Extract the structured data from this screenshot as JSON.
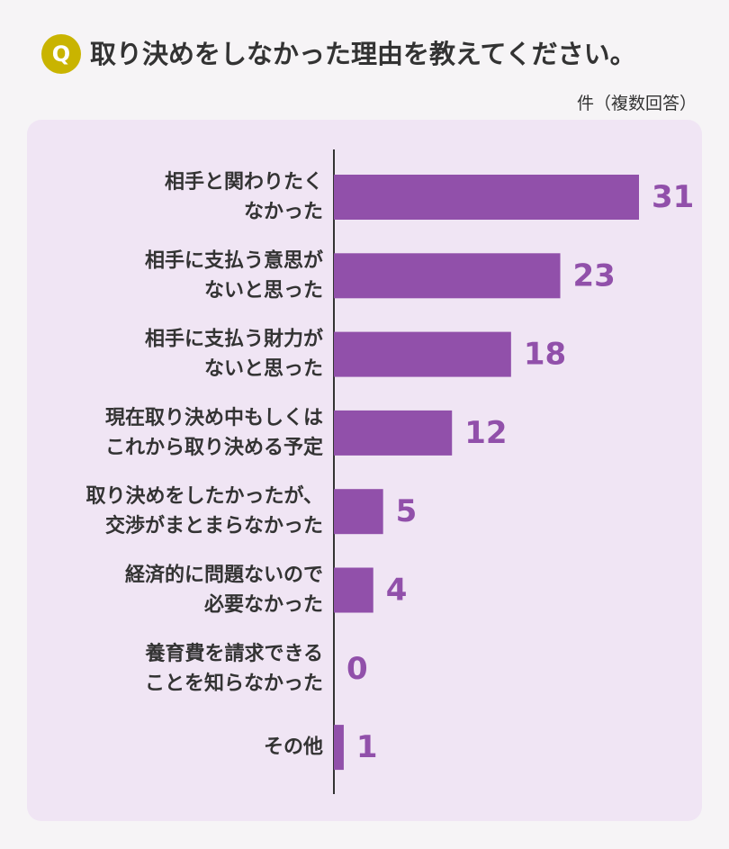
{
  "header": {
    "badge": "Q",
    "question": "取り決めをしなかった理由を教えてください。",
    "unit_note": "件（複数回答）"
  },
  "colors": {
    "bar": "#9150aa",
    "badge": "#c9b400",
    "panel": "#f0e5f4"
  },
  "chart_data": {
    "type": "bar",
    "orientation": "horizontal",
    "title": "取り決めをしなかった理由を教えてください。",
    "xlabel": "",
    "ylabel": "",
    "xlim": [
      0,
      31
    ],
    "grid": false,
    "legend": "none",
    "categories": [
      [
        "相手と関わりたく",
        "なかった"
      ],
      [
        "相手に支払う意思が",
        "ないと思った"
      ],
      [
        "相手に支払う財力が",
        "ないと思った"
      ],
      [
        "現在取り決め中もしくは",
        "これから取り決める予定"
      ],
      [
        "取り決めをしたかったが、",
        "交渉がまとまらなかった"
      ],
      [
        "経済的に問題ないので",
        "必要なかった"
      ],
      [
        "養育費を請求できる",
        "ことを知らなかった"
      ],
      [
        "その他"
      ]
    ],
    "values": [
      31,
      23,
      18,
      12,
      5,
      4,
      0,
      1
    ]
  }
}
